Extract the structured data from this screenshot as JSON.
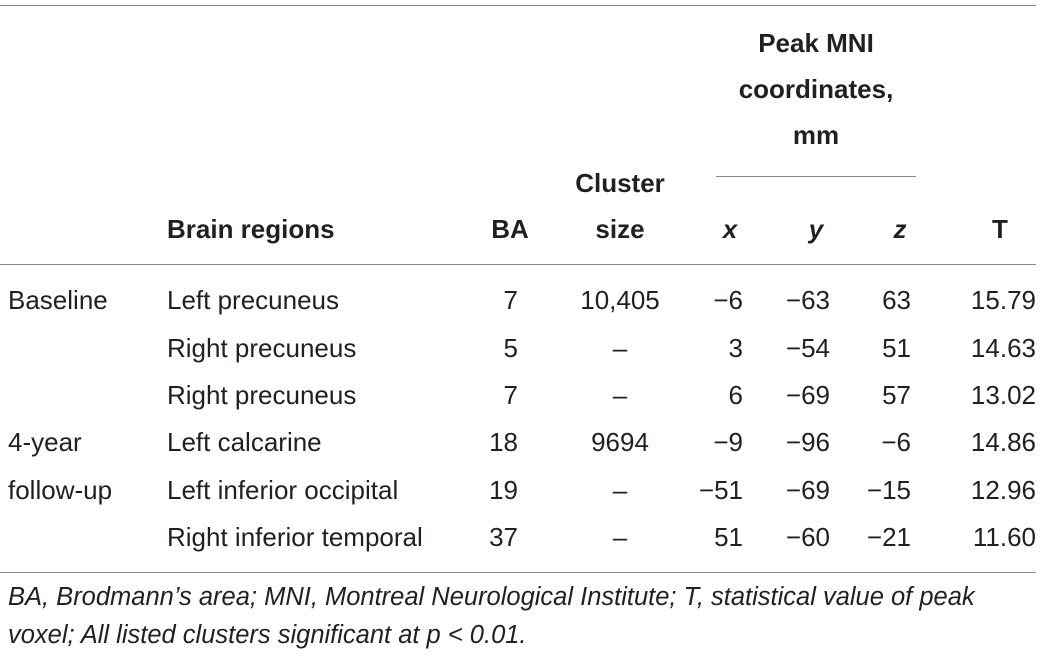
{
  "header": {
    "brain_regions": "Brain regions",
    "ba": "BA",
    "cluster_size_line1": "Cluster",
    "cluster_size_line2": "size",
    "peak_line1": "Peak MNI",
    "peak_line2": "coordinates,",
    "peak_line3": "mm",
    "x": "x",
    "y": "y",
    "z": "z",
    "t": "T"
  },
  "rows": [
    {
      "group": "Baseline",
      "region": "Left precuneus",
      "ba": "7",
      "cluster": "10,405",
      "x": "−6",
      "y": "−63",
      "z": "63",
      "t": "15.79"
    },
    {
      "group": "",
      "region": "Right precuneus",
      "ba": "5",
      "cluster": "–",
      "x": "3",
      "y": "−54",
      "z": "51",
      "t": "14.63"
    },
    {
      "group": "",
      "region": "Right precuneus",
      "ba": "7",
      "cluster": "–",
      "x": "6",
      "y": "−69",
      "z": "57",
      "t": "13.02"
    },
    {
      "group": "4-year",
      "region": "Left calcarine",
      "ba": "18",
      "cluster": "9694",
      "x": "−9",
      "y": "−96",
      "z": "−6",
      "t": "14.86"
    },
    {
      "group": "follow-up",
      "region": "Left inferior occipital",
      "ba": "19",
      "cluster": "–",
      "x": "−51",
      "y": "−69",
      "z": "−15",
      "t": "12.96"
    },
    {
      "group": "",
      "region": "Right inferior temporal",
      "ba": "37",
      "cluster": "–",
      "x": "51",
      "y": "−60",
      "z": "−21",
      "t": "11.60"
    }
  ],
  "footnote": "BA, Brodmann’s area; MNI, Montreal Neurological Institute; T, statistical value of peak voxel; All listed clusters significant at p < 0.01."
}
